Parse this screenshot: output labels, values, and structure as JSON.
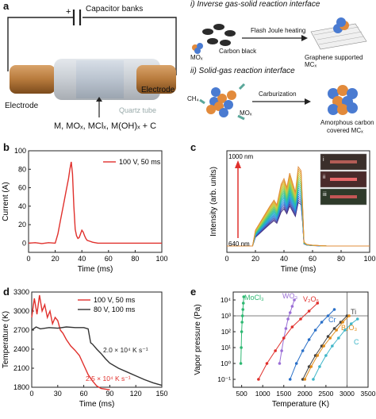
{
  "panel_a": {
    "letter": "a",
    "capacitor_label": "Capacitor banks",
    "electrode_left": "Electrode",
    "electrode_right": "Electrode",
    "quartz_label": "Quartz tube",
    "reactants": "M, MOₓ, MClₓ, M(OH)ₓ + C",
    "interface_i_title": "i) Inverse gas-solid reaction interface",
    "carbon_black": "Carbon black",
    "mox_label_i": "MOₓ",
    "flash_joule": "Flash Joule heating",
    "graphene_result": "Graphene supported MCₓ",
    "interface_ii_title": "ii) Solid-gas reaction interface",
    "ch4": "CH₄",
    "mox_label_ii": "MOₓ",
    "carburization": "Carburization",
    "amorphous_result_1": "Amorphous carbon",
    "amorphous_result_2": "covered MCₓ"
  },
  "panel_b": {
    "letter": "b",
    "chart_data": {
      "type": "line",
      "xlabel": "Time (ms)",
      "ylabel": "Current (A)",
      "xlim": [
        0,
        100
      ],
      "ylim": [
        -10,
        100
      ],
      "xticks": [
        0,
        20,
        40,
        60,
        80,
        100
      ],
      "yticks": [
        0,
        20,
        40,
        60,
        80,
        100
      ],
      "legend": "100 V, 50 ms",
      "color": "#e0302c",
      "series": [
        {
          "name": "100 V, 50 ms",
          "x": [
            0,
            5,
            10,
            15,
            20,
            22,
            24,
            26,
            28,
            30,
            31,
            32,
            33,
            34,
            35,
            36,
            37,
            38,
            39,
            40,
            41,
            42,
            43,
            44,
            46,
            48,
            50,
            52,
            55,
            60,
            70,
            80,
            90,
            100
          ],
          "y": [
            0,
            0.5,
            -0.5,
            0.5,
            0,
            10,
            25,
            40,
            55,
            70,
            80,
            88,
            75,
            40,
            15,
            8,
            5,
            6,
            10,
            14,
            12,
            8,
            5,
            3,
            2,
            1,
            0.5,
            0,
            0,
            0,
            0,
            0,
            0,
            0
          ]
        }
      ]
    }
  },
  "panel_c": {
    "letter": "c",
    "chart_data": {
      "type": "line",
      "xlabel": "Time (ms)",
      "ylabel": "Intensity (arb. units)",
      "xlim": [
        0,
        100
      ],
      "xticks": [
        0,
        20,
        40,
        60,
        80,
        100
      ],
      "arrow_top": "1000 nm",
      "arrow_bottom": "640 nm",
      "inset_labels": [
        "i",
        "ii",
        "iii"
      ],
      "series_count": 18,
      "x": [
        0,
        18,
        20,
        25,
        30,
        33,
        35,
        38,
        40,
        42,
        44,
        46,
        48,
        50,
        52,
        53,
        54,
        56,
        60,
        70,
        80,
        100
      ],
      "shape": [
        0,
        0,
        0.2,
        0.35,
        0.5,
        0.58,
        0.52,
        0.78,
        0.85,
        0.74,
        0.92,
        0.8,
        0.68,
        1.0,
        0.95,
        0.55,
        0.05,
        0.02,
        0.01,
        0,
        0,
        0
      ]
    }
  },
  "panel_d": {
    "letter": "d",
    "chart_data": {
      "type": "line",
      "xlabel": "Time (ms)",
      "ylabel": "Temperature (K)",
      "xlim": [
        0,
        150
      ],
      "ylim": [
        1800,
        3300
      ],
      "xticks": [
        0,
        30,
        60,
        90,
        120,
        150
      ],
      "yticks": [
        1800,
        2100,
        2400,
        2700,
        3000,
        3300
      ],
      "series": [
        {
          "name": "100 V, 50 ms",
          "color": "#e0302c",
          "x": [
            0,
            3,
            6,
            9,
            12,
            15,
            18,
            21,
            24,
            27,
            30,
            33,
            36,
            40,
            45,
            50,
            55,
            60,
            65,
            70,
            75,
            80,
            90
          ],
          "y": [
            2900,
            3200,
            2950,
            3250,
            3000,
            3100,
            2900,
            3000,
            2800,
            2900,
            2850,
            2700,
            2650,
            2550,
            2450,
            2380,
            2300,
            2150,
            2000,
            1900,
            1820,
            1780,
            1760
          ]
        },
        {
          "name": "80 V, 100 ms",
          "color": "#333333",
          "x": [
            0,
            5,
            10,
            20,
            30,
            40,
            50,
            60,
            65,
            68,
            70,
            75,
            80,
            85,
            90,
            100,
            110,
            120,
            130,
            140,
            150
          ],
          "y": [
            2700,
            2750,
            2720,
            2740,
            2730,
            2750,
            2740,
            2740,
            2720,
            2500,
            2480,
            2400,
            2330,
            2250,
            2180,
            2100,
            2040,
            1980,
            1920,
            1870,
            1830
          ]
        }
      ],
      "annotations": [
        {
          "text": "2.0 × 10⁴ K s⁻¹",
          "color": "#222222"
        },
        {
          "text": "2.5 × 10⁴ K s⁻¹",
          "color": "#e0302c"
        }
      ]
    }
  },
  "panel_e": {
    "letter": "e",
    "chart_data": {
      "type": "scatter",
      "xlabel": "Temperature (K)",
      "ylabel": "Vapor pressure (Pa)",
      "xlim": [
        300,
        3500
      ],
      "xticks": [
        500,
        1000,
        1500,
        2000,
        2500,
        3000,
        3500
      ],
      "ylog": true,
      "ylim_exp": [
        -1.5,
        4.5
      ],
      "ytick_labels": [
        "10⁻¹",
        "10⁰",
        "10¹",
        "10²",
        "10³",
        "10⁴"
      ],
      "ytick_exps": [
        -1,
        0,
        1,
        2,
        3,
        4
      ],
      "ref_line_exp": 3,
      "ref_line_x": 3000,
      "series": [
        {
          "name": "MoCl₃",
          "color": "#2eb872",
          "x": [
            480,
            490,
            500,
            510,
            520,
            530,
            540,
            550
          ],
          "y_exp": [
            0,
            1,
            2,
            2.6,
            3,
            3.4,
            3.8,
            4.2
          ]
        },
        {
          "name": "WO₃",
          "color": "#9b6fd6",
          "x": [
            1400,
            1450,
            1500,
            1550,
            1600,
            1650,
            1700,
            1750
          ],
          "y_exp": [
            0,
            0.8,
            1.6,
            2.2,
            2.8,
            3.2,
            3.6,
            4.0
          ]
        },
        {
          "name": "V₂O₅",
          "color": "#e0302c",
          "x": [
            900,
            1100,
            1300,
            1500,
            1700,
            1900,
            2100,
            2300
          ],
          "y_exp": [
            -1,
            0,
            0.8,
            1.6,
            2.3,
            2.8,
            3.3,
            3.8
          ]
        },
        {
          "name": "Cr",
          "color": "#2a70c8",
          "x": [
            1650,
            1800,
            1950,
            2100,
            2250,
            2400,
            2550,
            2700
          ],
          "y_exp": [
            -1,
            0,
            0.8,
            1.5,
            2.1,
            2.6,
            3.0,
            3.4
          ]
        },
        {
          "name": "Ti",
          "color": "#444444",
          "x": [
            1950,
            2100,
            2250,
            2400,
            2550,
            2700,
            2850,
            3000
          ],
          "y_exp": [
            -1,
            -0.2,
            0.5,
            1.1,
            1.7,
            2.2,
            2.6,
            3.0
          ]
        },
        {
          "name": "B₂O₃",
          "color": "#e08c1a",
          "x": [
            2000,
            2150,
            2300,
            2450,
            2600,
            2750,
            2900,
            3050
          ],
          "y_exp": [
            -1,
            -0.2,
            0.5,
            1.1,
            1.6,
            2.1,
            2.6,
            3.0
          ]
        },
        {
          "name": "C",
          "color": "#3fb6c9",
          "x": [
            2200,
            2350,
            2500,
            2650,
            2800,
            2950,
            3100,
            3250
          ],
          "y_exp": [
            -1,
            -0.2,
            0.5,
            1.1,
            1.6,
            2.1,
            2.5,
            2.8
          ]
        }
      ]
    }
  }
}
